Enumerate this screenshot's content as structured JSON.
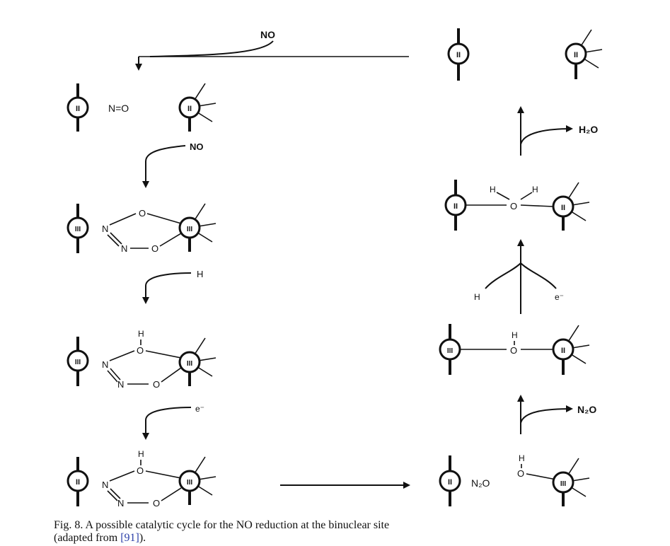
{
  "caption": {
    "line1": "Fig. 8.  A possible catalytic cycle for the NO reduction at the binuclear site",
    "line2_pre": "(adapted from ",
    "line2_ref": "[91]",
    "line2_post": ")."
  },
  "metal_labels": {
    "ii": "II",
    "iii": "III"
  },
  "reagents": {
    "top": "NO",
    "step1": "NO",
    "step2": "H",
    "step3": "e⁻",
    "h2o_out": "H₂O",
    "n2o_out": "N₂O",
    "right_h": "H",
    "right_e": "e⁻"
  },
  "atoms": {
    "N": "N",
    "O": "O",
    "H": "H",
    "NO_label": "N=O",
    "N2O_label": "N₂O",
    "dash": "−"
  }
}
